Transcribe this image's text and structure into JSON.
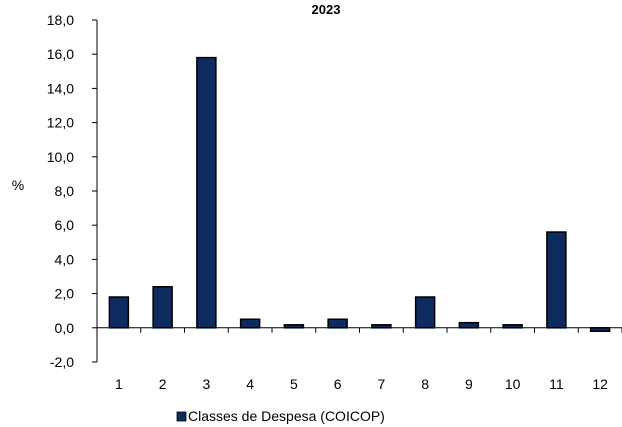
{
  "chart_data": {
    "type": "bar",
    "title": "2023",
    "ylabel": "%",
    "xlabel": "",
    "ylim": [
      -2,
      18
    ],
    "y_ticks": [
      "-2,0",
      "0,0",
      "2,0",
      "4,0",
      "6,0",
      "8,0",
      "10,0",
      "12,0",
      "14,0",
      "16,0",
      "18,0"
    ],
    "categories": [
      "1",
      "2",
      "3",
      "4",
      "5",
      "6",
      "7",
      "8",
      "9",
      "10",
      "11",
      "12"
    ],
    "series": [
      {
        "name": "Classes de Despesa (COICOP)",
        "values": [
          1.8,
          2.4,
          15.8,
          0.5,
          0.05,
          0.5,
          0.15,
          1.8,
          0.3,
          0.0,
          5.6,
          -0.2
        ]
      }
    ],
    "grid": false,
    "legend": "bottom",
    "colors": {
      "bar": "#0d2b5e",
      "axis": "#000000"
    }
  }
}
